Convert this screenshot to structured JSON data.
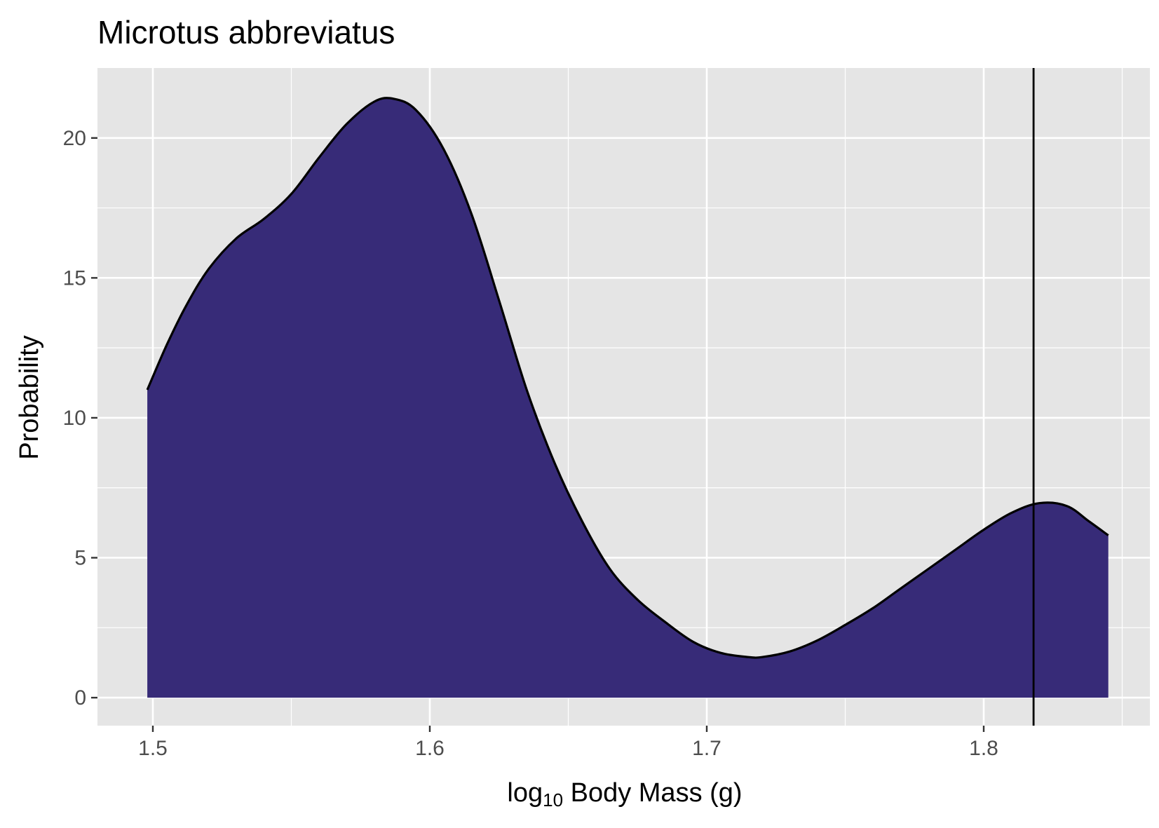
{
  "chart_data": {
    "type": "area",
    "title": "Microtus abbreviatus",
    "xlabel": {
      "prefix": "log",
      "subscript": "10",
      "suffix": " Body Mass (g)"
    },
    "ylabel": "Probability",
    "xlim": [
      1.48,
      1.86
    ],
    "ylim": [
      -1.0,
      22.5
    ],
    "x_ticks": [
      {
        "value": 1.5,
        "label": "1.5"
      },
      {
        "value": 1.6,
        "label": "1.6"
      },
      {
        "value": 1.7,
        "label": "1.7"
      },
      {
        "value": 1.8,
        "label": "1.8"
      }
    ],
    "x_minor_ticks": [
      1.55,
      1.65,
      1.75,
      1.85
    ],
    "y_ticks": [
      {
        "value": 0,
        "label": "0"
      },
      {
        "value": 5,
        "label": "5"
      },
      {
        "value": 10,
        "label": "10"
      },
      {
        "value": 15,
        "label": "15"
      },
      {
        "value": 20,
        "label": "20"
      }
    ],
    "y_minor_ticks": [
      2.5,
      7.5,
      12.5,
      17.5
    ],
    "grid": true,
    "vline_x": 1.818,
    "series": [
      {
        "fill": "#372b78",
        "line": "#000000",
        "x": [
          1.498,
          1.505,
          1.512,
          1.52,
          1.53,
          1.54,
          1.55,
          1.56,
          1.57,
          1.58,
          1.587,
          1.595,
          1.605,
          1.615,
          1.625,
          1.635,
          1.645,
          1.655,
          1.665,
          1.675,
          1.685,
          1.695,
          1.705,
          1.715,
          1.72,
          1.73,
          1.74,
          1.75,
          1.76,
          1.77,
          1.78,
          1.79,
          1.8,
          1.81,
          1.82,
          1.83,
          1.838,
          1.845
        ],
        "y": [
          11.0,
          12.6,
          14.0,
          15.3,
          16.4,
          17.1,
          18.0,
          19.3,
          20.5,
          21.3,
          21.4,
          21.0,
          19.6,
          17.3,
          14.2,
          11.0,
          8.4,
          6.3,
          4.6,
          3.5,
          2.7,
          2.0,
          1.6,
          1.45,
          1.45,
          1.65,
          2.05,
          2.6,
          3.2,
          3.9,
          4.6,
          5.3,
          6.0,
          6.6,
          6.95,
          6.85,
          6.3,
          5.8
        ]
      }
    ]
  }
}
